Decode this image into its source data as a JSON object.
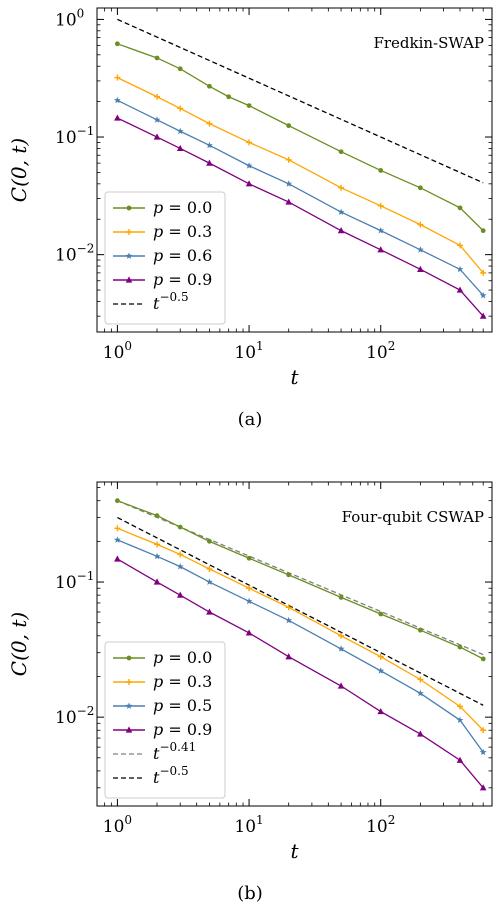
{
  "chart_data": [
    {
      "type": "line",
      "panel_label": "(a)",
      "title": "Fredkin-SWAP",
      "xlabel": "t",
      "ylabel": "C(0, t)",
      "xscale": "log",
      "yscale": "log",
      "xlim": [
        0.7,
        700
      ],
      "ylim": [
        0.0022,
        1.25
      ],
      "xticks": [
        {
          "value": 1,
          "base": "10",
          "exp": "0"
        },
        {
          "value": 10,
          "base": "10",
          "exp": "1"
        },
        {
          "value": 100,
          "base": "10",
          "exp": "2"
        }
      ],
      "yticks": [
        {
          "value": 0.01,
          "base": "10",
          "exp": "−2"
        },
        {
          "value": 0.1,
          "base": "10",
          "exp": "−1"
        },
        {
          "value": 1,
          "base": "10",
          "exp": "0"
        }
      ],
      "legend_position": "lower-left",
      "series": [
        {
          "name": "p = 0.0",
          "name_var": "p",
          "name_val": "= 0.0",
          "color": "#6b8e23",
          "marker": "circle",
          "points": [
            [
              1,
              0.62
            ],
            [
              2,
              0.47
            ],
            [
              3,
              0.38
            ],
            [
              5,
              0.27
            ],
            [
              7,
              0.22
            ],
            [
              10,
              0.185
            ],
            [
              20,
              0.125
            ],
            [
              50,
              0.075
            ],
            [
              100,
              0.052
            ],
            [
              200,
              0.037
            ],
            [
              400,
              0.025
            ],
            [
              600,
              0.016
            ]
          ]
        },
        {
          "name": "p = 0.3",
          "name_var": "p",
          "name_val": "= 0.3",
          "color": "#ffa500",
          "marker": "plus",
          "points": [
            [
              1,
              0.32
            ],
            [
              2,
              0.22
            ],
            [
              3,
              0.175
            ],
            [
              5,
              0.13
            ],
            [
              10,
              0.09
            ],
            [
              20,
              0.064
            ],
            [
              50,
              0.037
            ],
            [
              100,
              0.026
            ],
            [
              200,
              0.018
            ],
            [
              400,
              0.012
            ],
            [
              600,
              0.007
            ]
          ]
        },
        {
          "name": "p = 0.6",
          "name_var": "p",
          "name_val": "= 0.6",
          "color": "#4a7fb0",
          "marker": "star",
          "points": [
            [
              1,
              0.205
            ],
            [
              2,
              0.14
            ],
            [
              3,
              0.112
            ],
            [
              5,
              0.085
            ],
            [
              10,
              0.057
            ],
            [
              20,
              0.04
            ],
            [
              50,
              0.023
            ],
            [
              100,
              0.016
            ],
            [
              200,
              0.011
            ],
            [
              400,
              0.0075
            ],
            [
              600,
              0.0045
            ]
          ]
        },
        {
          "name": "p = 0.9",
          "name_var": "p",
          "name_val": "= 0.9",
          "color": "#800080",
          "marker": "triangle",
          "points": [
            [
              1,
              0.145
            ],
            [
              2,
              0.1
            ],
            [
              3,
              0.08
            ],
            [
              5,
              0.06
            ],
            [
              10,
              0.04
            ],
            [
              20,
              0.028
            ],
            [
              50,
              0.016
            ],
            [
              100,
              0.011
            ],
            [
              200,
              0.0075
            ],
            [
              400,
              0.005
            ],
            [
              600,
              0.003
            ]
          ]
        }
      ],
      "reference_lines": [
        {
          "name": "t−0.5",
          "name_base": "t",
          "name_exp": "−0.5",
          "color": "#000000",
          "style": "dashed",
          "coef": 1.0,
          "exponent": -0.5
        }
      ]
    },
    {
      "type": "line",
      "panel_label": "(b)",
      "title": "Four-qubit CSWAP",
      "xlabel": "t",
      "ylabel": "C(0, t)",
      "xscale": "log",
      "yscale": "log",
      "xlim": [
        0.7,
        700
      ],
      "ylim": [
        0.0022,
        0.55
      ],
      "xticks": [
        {
          "value": 1,
          "base": "10",
          "exp": "0"
        },
        {
          "value": 10,
          "base": "10",
          "exp": "1"
        },
        {
          "value": 100,
          "base": "10",
          "exp": "2"
        }
      ],
      "yticks": [
        {
          "value": 0.01,
          "base": "10",
          "exp": "−2"
        },
        {
          "value": 0.1,
          "base": "10",
          "exp": "−1"
        }
      ],
      "legend_position": "lower-left",
      "series": [
        {
          "name": "p = 0.0",
          "name_var": "p",
          "name_val": "= 0.0",
          "color": "#6b8e23",
          "marker": "circle",
          "points": [
            [
              1,
              0.4
            ],
            [
              2,
              0.31
            ],
            [
              3,
              0.255
            ],
            [
              5,
              0.2
            ],
            [
              10,
              0.15
            ],
            [
              20,
              0.113
            ],
            [
              50,
              0.077
            ],
            [
              100,
              0.058
            ],
            [
              200,
              0.044
            ],
            [
              400,
              0.033
            ],
            [
              600,
              0.027
            ]
          ]
        },
        {
          "name": "p = 0.3",
          "name_var": "p",
          "name_val": "= 0.3",
          "color": "#ffa500",
          "marker": "plus",
          "points": [
            [
              1,
              0.25
            ],
            [
              2,
              0.19
            ],
            [
              3,
              0.16
            ],
            [
              5,
              0.125
            ],
            [
              10,
              0.09
            ],
            [
              20,
              0.065
            ],
            [
              50,
              0.04
            ],
            [
              100,
              0.028
            ],
            [
              200,
              0.019
            ],
            [
              400,
              0.012
            ],
            [
              600,
              0.008
            ]
          ]
        },
        {
          "name": "p = 0.5",
          "name_var": "p",
          "name_val": "= 0.5",
          "color": "#4a7fb0",
          "marker": "star",
          "points": [
            [
              1,
              0.205
            ],
            [
              2,
              0.155
            ],
            [
              3,
              0.13
            ],
            [
              5,
              0.1
            ],
            [
              10,
              0.072
            ],
            [
              20,
              0.052
            ],
            [
              50,
              0.032
            ],
            [
              100,
              0.022
            ],
            [
              200,
              0.015
            ],
            [
              400,
              0.0095
            ],
            [
              600,
              0.0055
            ]
          ]
        },
        {
          "name": "p = 0.9",
          "name_var": "p",
          "name_val": "= 0.9",
          "color": "#800080",
          "marker": "triangle",
          "points": [
            [
              1,
              0.148
            ],
            [
              2,
              0.1
            ],
            [
              3,
              0.08
            ],
            [
              5,
              0.06
            ],
            [
              10,
              0.042
            ],
            [
              20,
              0.028
            ],
            [
              50,
              0.017
            ],
            [
              100,
              0.011
            ],
            [
              200,
              0.0075
            ],
            [
              400,
              0.0048
            ],
            [
              600,
              0.003
            ]
          ]
        }
      ],
      "reference_lines": [
        {
          "name": "t−0.41",
          "name_base": "t",
          "name_exp": "−0.41",
          "color": "#808080",
          "style": "dashed",
          "coef": 0.4,
          "exponent": -0.41
        },
        {
          "name": "t−0.5",
          "name_base": "t",
          "name_exp": "−0.5",
          "color": "#000000",
          "style": "dashed",
          "coef": 0.3,
          "exponent": -0.5
        }
      ]
    }
  ]
}
